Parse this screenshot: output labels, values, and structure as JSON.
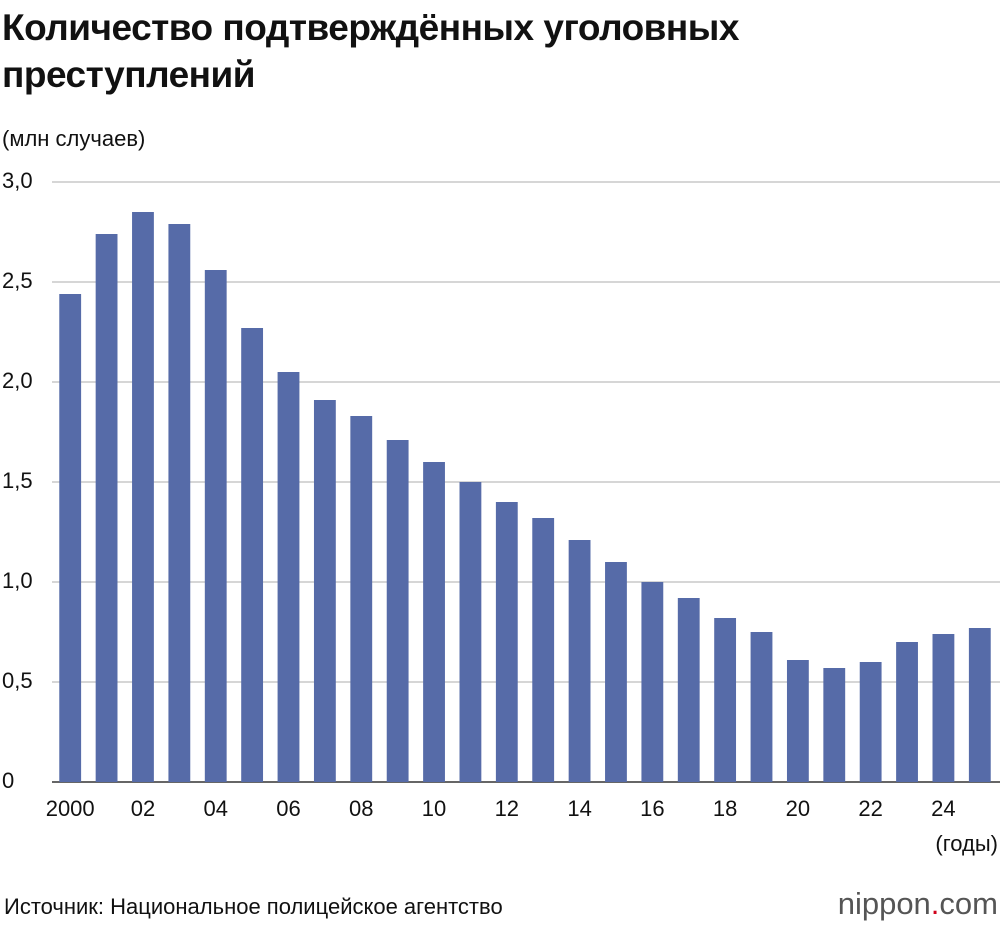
{
  "chart_data": {
    "type": "bar",
    "title": "Количество подтверждённых уголовных преступлений",
    "y_label": "(млн случаев)",
    "x_label": "(годы)",
    "source": "Источник: Национальное полицейское агентство",
    "logo": [
      "nippon",
      ".",
      "com"
    ],
    "categories": [
      "2000",
      null,
      "02",
      null,
      "04",
      null,
      "06",
      null,
      "08",
      null,
      "10",
      null,
      "12",
      null,
      "14",
      null,
      "16",
      null,
      "18",
      null,
      "20",
      null,
      "22",
      null,
      "24",
      null
    ],
    "values": [
      2.44,
      2.74,
      2.85,
      2.79,
      2.56,
      2.27,
      2.05,
      1.91,
      1.83,
      1.71,
      1.6,
      1.5,
      1.4,
      1.32,
      1.21,
      1.1,
      1.0,
      0.92,
      0.82,
      0.75,
      0.61,
      0.57,
      0.6,
      0.7,
      0.74,
      0.77
    ],
    "color": "#566ba8",
    "ylim": [
      0,
      3
    ],
    "yticks": [
      0,
      {
        "value": 0.5,
        "label": "0,5"
      },
      {
        "value": 1,
        "label": "1,0"
      },
      {
        "value": 1.5,
        "label": "1,5"
      },
      {
        "value": 2,
        "label": "2,0"
      },
      {
        "value": 2.5,
        "label": "2,5"
      },
      {
        "value": 3,
        "label": "3,0"
      }
    ],
    "grid": true
  }
}
